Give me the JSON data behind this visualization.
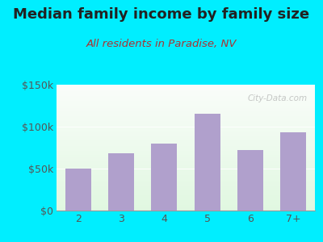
{
  "title": "Median family income by family size",
  "subtitle": "All residents in Paradise, NV",
  "categories": [
    "2",
    "3",
    "4",
    "5",
    "6",
    "7+"
  ],
  "values": [
    50000,
    68000,
    80000,
    115000,
    72000,
    93000
  ],
  "bar_color": "#b0a0cc",
  "background_outer": "#00eeff",
  "ylim": [
    0,
    150000
  ],
  "yticks": [
    0,
    50000,
    100000,
    150000
  ],
  "title_fontsize": 13,
  "subtitle_fontsize": 9.5,
  "tick_fontsize": 9,
  "watermark": "City-Data.com",
  "title_color": "#222222",
  "subtitle_color": "#aa3333",
  "tick_color": "#555555"
}
